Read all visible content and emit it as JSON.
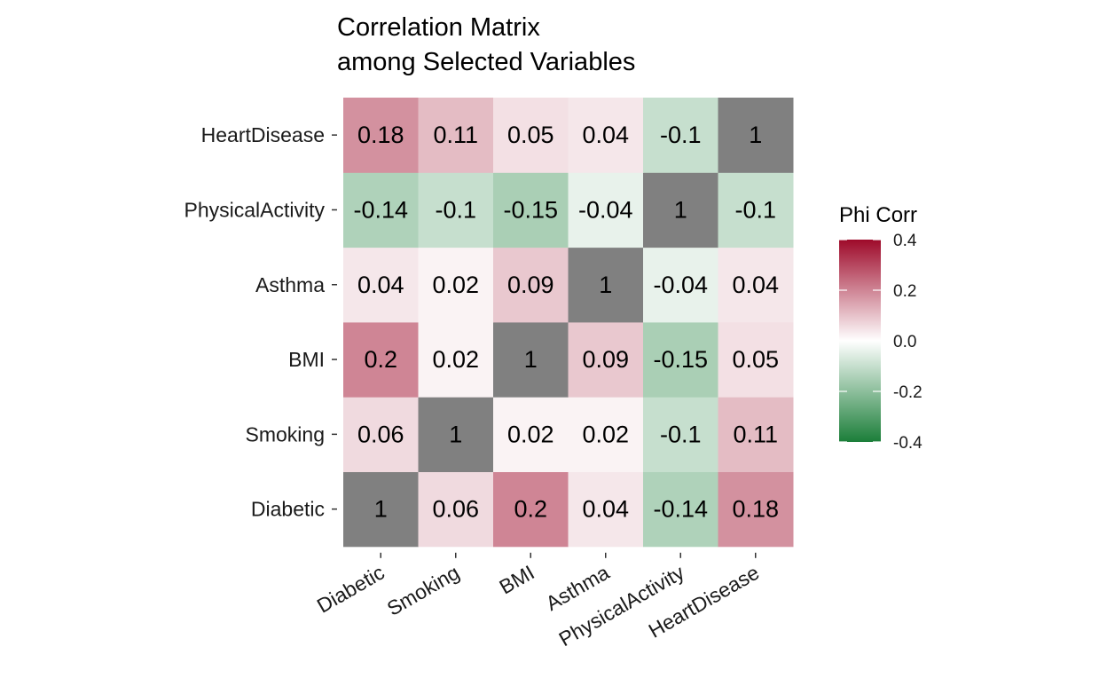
{
  "chart_data": {
    "type": "heatmap",
    "title": "Correlation Matrix\namong Selected Variables",
    "variables": [
      "Diabetic",
      "Smoking",
      "BMI",
      "Asthma",
      "PhysicalActivity",
      "HeartDisease"
    ],
    "values": [
      [
        1,
        0.06,
        0.2,
        0.04,
        -0.14,
        0.18
      ],
      [
        0.06,
        1,
        0.02,
        0.02,
        -0.1,
        0.11
      ],
      [
        0.2,
        0.02,
        1,
        0.09,
        -0.15,
        0.05
      ],
      [
        0.04,
        0.02,
        0.09,
        1,
        -0.04,
        0.04
      ],
      [
        -0.14,
        -0.1,
        -0.15,
        -0.04,
        1,
        -0.1
      ],
      [
        0.18,
        0.11,
        0.05,
        0.04,
        -0.1,
        1
      ]
    ],
    "legend": {
      "title": "Phi Corr",
      "limits": [
        -0.4,
        0.4
      ],
      "ticks": [
        "0.4",
        "0.2",
        "0.0",
        "-0.2",
        "-0.4"
      ],
      "position": "right"
    },
    "colors": {
      "low": "#1b7e39",
      "mid": "#ffffff",
      "high": "#9e0a2a",
      "diagonal": "#808080"
    },
    "xlabel": "",
    "ylabel": ""
  }
}
